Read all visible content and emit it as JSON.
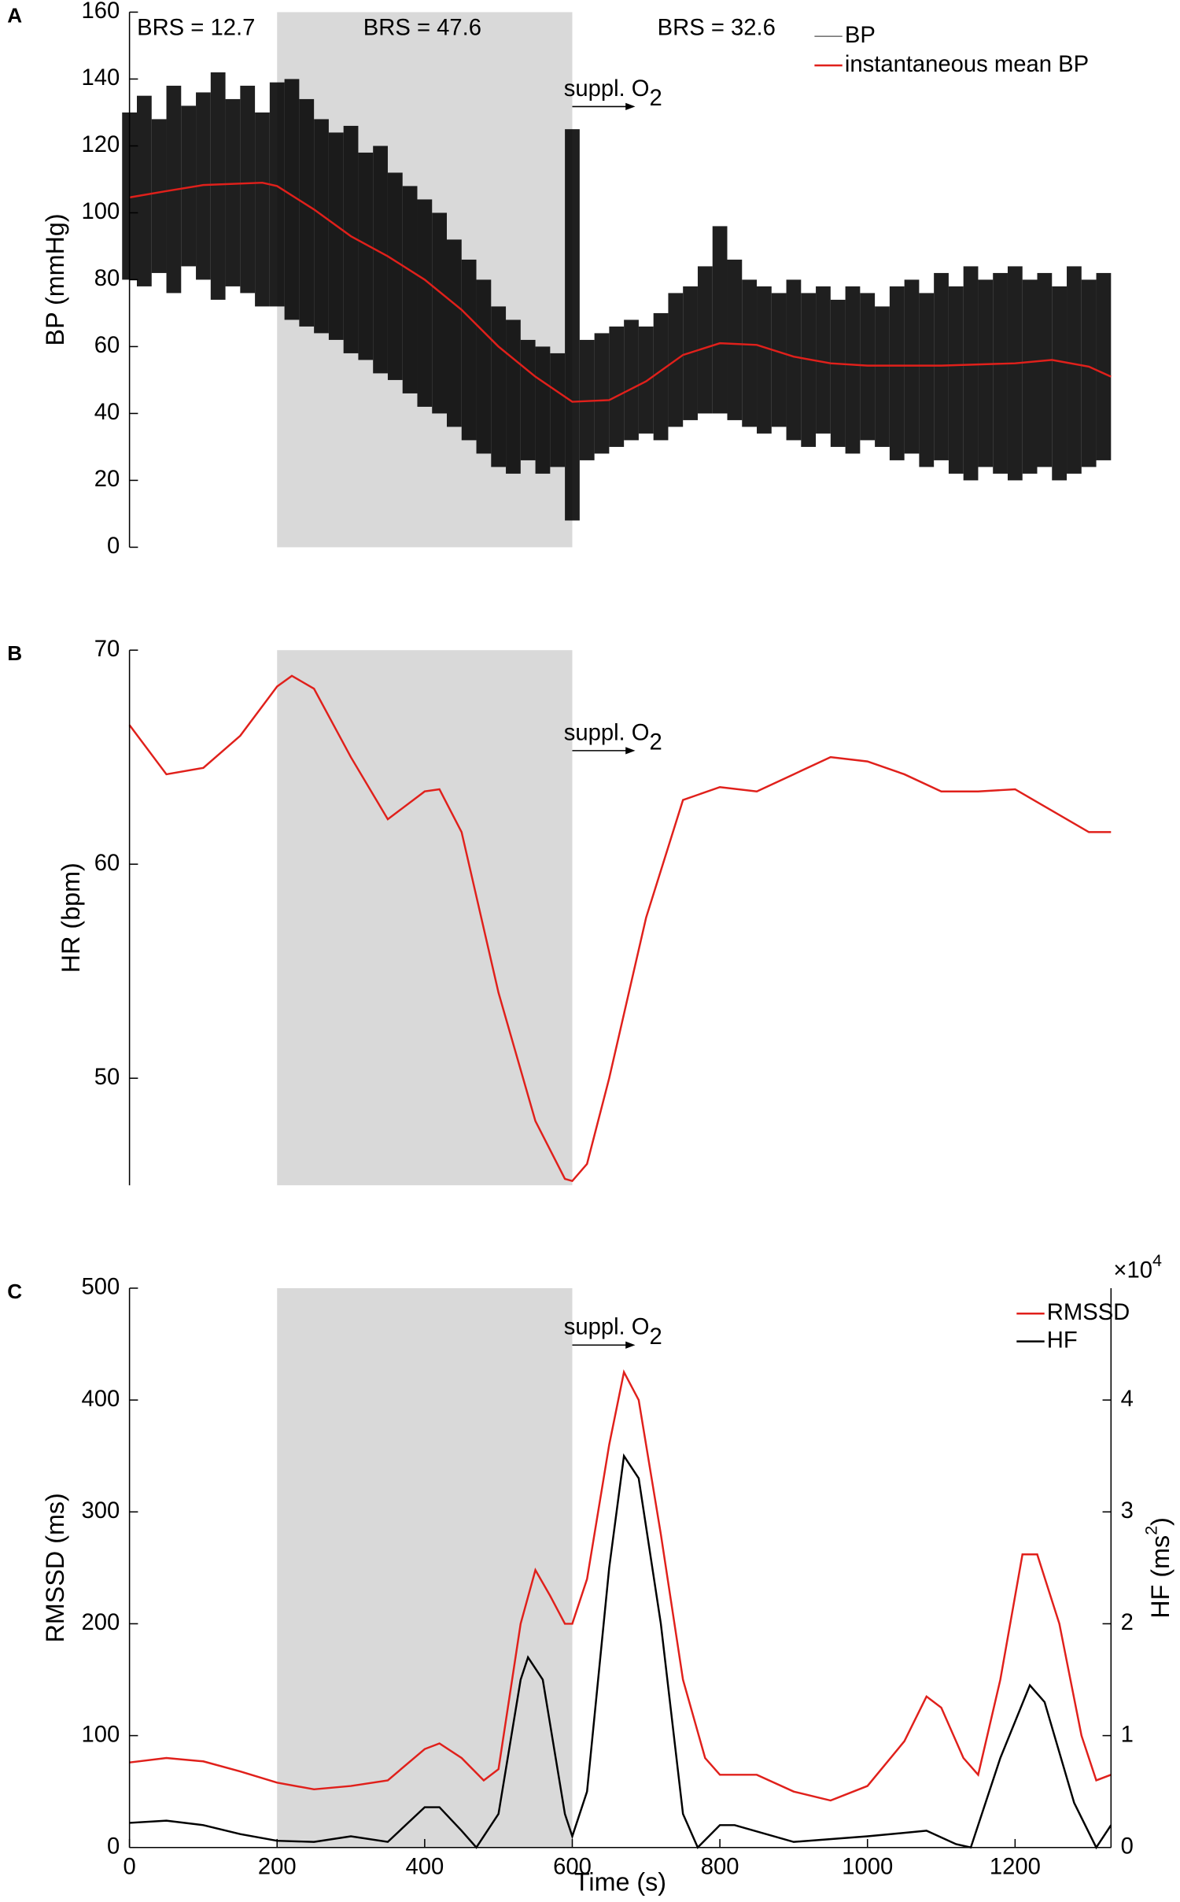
{
  "chart_data": [
    {
      "type": "line",
      "panel": "A",
      "ylabel": "BP (mmHg)",
      "xlim": [
        0,
        1330
      ],
      "ylim": [
        0,
        160
      ],
      "yticks": [
        0,
        20,
        40,
        60,
        80,
        100,
        120,
        140,
        160
      ],
      "shaded_region": [
        200,
        600
      ],
      "legend": "upper right",
      "annotations": [
        "BRS = 12.7",
        "BRS = 47.6",
        "BRS = 32.6"
      ],
      "arrow_label": {
        "text": "suppl. O",
        "subscript": "2"
      },
      "series": [
        {
          "name": "BP",
          "color": "#000000",
          "x": [
            0,
            20,
            40,
            60,
            80,
            100,
            120,
            140,
            160,
            180,
            200,
            220,
            240,
            260,
            280,
            300,
            320,
            340,
            360,
            380,
            400,
            420,
            440,
            460,
            480,
            500,
            520,
            540,
            560,
            580,
            600,
            620,
            640,
            660,
            680,
            700,
            720,
            740,
            760,
            780,
            800,
            820,
            840,
            860,
            880,
            900,
            920,
            940,
            960,
            980,
            1000,
            1020,
            1040,
            1060,
            1080,
            1100,
            1120,
            1140,
            1160,
            1180,
            1200,
            1220,
            1240,
            1260,
            1280,
            1300,
            1320
          ],
          "high": [
            130,
            135,
            128,
            138,
            132,
            136,
            142,
            134,
            138,
            130,
            139,
            140,
            134,
            128,
            124,
            126,
            118,
            120,
            112,
            108,
            104,
            100,
            92,
            86,
            80,
            72,
            68,
            62,
            60,
            58,
            125,
            62,
            64,
            66,
            68,
            66,
            70,
            76,
            78,
            84,
            96,
            86,
            80,
            78,
            76,
            80,
            76,
            78,
            74,
            78,
            76,
            72,
            78,
            80,
            76,
            82,
            78,
            84,
            80,
            82,
            84,
            80,
            82,
            78,
            84,
            80,
            82
          ],
          "low": [
            80,
            78,
            82,
            76,
            84,
            80,
            74,
            78,
            76,
            72,
            72,
            68,
            66,
            64,
            62,
            58,
            56,
            52,
            50,
            46,
            42,
            40,
            36,
            32,
            28,
            24,
            22,
            26,
            22,
            24,
            8,
            26,
            28,
            30,
            32,
            34,
            32,
            36,
            38,
            40,
            40,
            38,
            36,
            34,
            36,
            32,
            30,
            34,
            30,
            28,
            32,
            30,
            26,
            28,
            24,
            26,
            22,
            20,
            24,
            22,
            20,
            22,
            24,
            20,
            22,
            24,
            26
          ]
        },
        {
          "name": "instantaneous mean BP",
          "color": "#e0201b",
          "x": [
            0,
            50,
            100,
            180,
            200,
            250,
            300,
            350,
            400,
            450,
            500,
            550,
            600,
            650,
            700,
            750,
            800,
            850,
            900,
            950,
            1000,
            1100,
            1200,
            1250,
            1300,
            1330
          ],
          "values": [
            104.6,
            106.5,
            108.3,
            109,
            108,
            101,
            93,
            87,
            80,
            71,
            60,
            51,
            43.5,
            44,
            49.6,
            57.5,
            61,
            60.5,
            57,
            55,
            54.3,
            54.3,
            55,
            56,
            54,
            51
          ]
        }
      ]
    },
    {
      "type": "line",
      "panel": "B",
      "ylabel": "HR (bpm)",
      "xlim": [
        0,
        1330
      ],
      "ylim": [
        45,
        70
      ],
      "yticks": [
        50,
        60,
        70
      ],
      "shaded_region": [
        200,
        600
      ],
      "arrow_label": {
        "text": "suppl. O",
        "subscript": "2"
      },
      "series": [
        {
          "name": "HR",
          "color": "#e0201b",
          "x": [
            0,
            50,
            100,
            150,
            200,
            220,
            250,
            300,
            350,
            400,
            420,
            450,
            500,
            550,
            590,
            600,
            620,
            650,
            700,
            750,
            800,
            850,
            900,
            950,
            1000,
            1050,
            1100,
            1150,
            1200,
            1250,
            1300,
            1330
          ],
          "values": [
            66.5,
            64.2,
            64.5,
            66,
            68.3,
            68.8,
            68.2,
            65,
            62.1,
            63.4,
            63.5,
            61.5,
            54,
            48,
            45.3,
            45.2,
            46,
            50,
            57.5,
            63,
            63.6,
            63.4,
            64.2,
            65,
            64.8,
            64.2,
            63.4,
            63.4,
            63.5,
            62.5,
            61.5,
            61.5
          ]
        }
      ]
    },
    {
      "type": "line",
      "panel": "C",
      "ylabel": "RMSSD (ms)",
      "xlabel": "Time (s)",
      "y2label": {
        "text": "HF (ms",
        "superscript": "2",
        "end": ")"
      },
      "y2exponent": {
        "text": "×10",
        "superscript": "4"
      },
      "xlim": [
        0,
        1330
      ],
      "xticks": [
        0,
        200,
        400,
        600,
        800,
        1000,
        1200
      ],
      "ylim": [
        0,
        500
      ],
      "yticks": [
        0,
        100,
        200,
        300,
        400,
        500
      ],
      "y2lim": [
        0,
        5
      ],
      "y2ticks": [
        0,
        1,
        2,
        3,
        4
      ],
      "shaded_region": [
        200,
        600
      ],
      "legend": "upper right",
      "arrow_label": {
        "text": "suppl. O",
        "subscript": "2"
      },
      "series": [
        {
          "name": "RMSSD",
          "color": "#e0201b",
          "x": [
            0,
            50,
            100,
            150,
            200,
            250,
            300,
            350,
            400,
            420,
            450,
            480,
            500,
            530,
            550,
            570,
            590,
            600,
            620,
            650,
            670,
            690,
            720,
            750,
            780,
            800,
            850,
            900,
            950,
            1000,
            1050,
            1080,
            1100,
            1130,
            1150,
            1180,
            1210,
            1230,
            1260,
            1290,
            1310,
            1330
          ],
          "values": [
            76,
            80,
            77,
            68,
            58,
            52,
            55,
            60,
            88,
            93,
            80,
            60,
            70,
            200,
            248,
            225,
            200,
            200,
            240,
            360,
            425,
            400,
            280,
            150,
            80,
            65,
            65,
            50,
            42,
            55,
            95,
            135,
            125,
            80,
            65,
            150,
            262,
            262,
            200,
            100,
            60,
            65
          ]
        },
        {
          "name": "HF",
          "color": "#000000",
          "axis": "y2",
          "x": [
            0,
            50,
            100,
            150,
            200,
            250,
            300,
            350,
            400,
            420,
            450,
            470,
            500,
            530,
            540,
            560,
            590,
            600,
            620,
            650,
            670,
            690,
            720,
            750,
            770,
            800,
            820,
            900,
            1000,
            1080,
            1120,
            1140,
            1180,
            1220,
            1240,
            1280,
            1310,
            1330
          ],
          "values": [
            0.22,
            0.24,
            0.2,
            0.12,
            0.06,
            0.05,
            0.1,
            0.05,
            0.36,
            0.36,
            0.15,
            0,
            0.3,
            1.5,
            1.7,
            1.5,
            0.3,
            0.1,
            0.5,
            2.5,
            3.5,
            3.3,
            2.0,
            0.3,
            0,
            0.2,
            0.2,
            0.05,
            0.1,
            0.15,
            0.03,
            0,
            0.8,
            1.45,
            1.3,
            0.4,
            0,
            0.2
          ]
        }
      ]
    }
  ]
}
